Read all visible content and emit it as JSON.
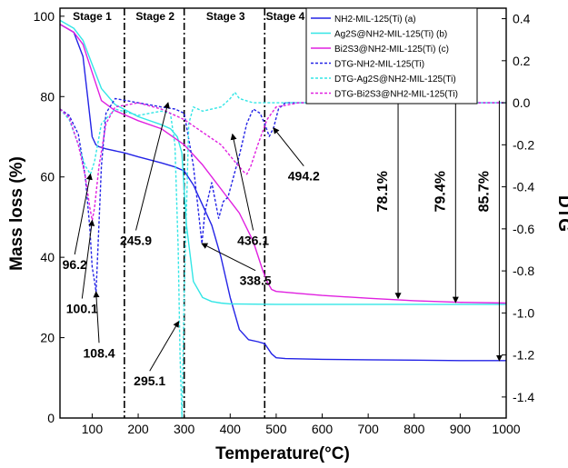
{
  "chart_data": {
    "type": "line",
    "xlabel": "Temperature(°C)",
    "ylabel": "Mass loss (%)",
    "y2label": "DTG",
    "xlim": [
      30,
      1000
    ],
    "ylim": [
      0,
      102
    ],
    "y2lim": [
      -1.5,
      0.45
    ],
    "xticks": [
      100,
      200,
      300,
      400,
      500,
      600,
      700,
      800,
      900,
      1000
    ],
    "yticks": [
      0,
      20,
      40,
      60,
      80,
      100
    ],
    "y2ticks": [
      -1.4,
      -1.2,
      -1.0,
      -0.8,
      -0.6,
      -0.4,
      -0.2,
      0.0,
      0.2,
      0.4
    ],
    "grid": false,
    "legend_position": "top-right",
    "stage_lines": [
      170,
      300,
      475
    ],
    "stages": [
      {
        "label": "Stage 1",
        "x": 100
      },
      {
        "label": "Stage 2",
        "x": 237
      },
      {
        "label": "Stage 3",
        "x": 390
      },
      {
        "label": "Stage 4",
        "x": 520
      }
    ],
    "series": [
      {
        "name": "NH2-MIL-125(Ti) (a)",
        "axis": "left",
        "style": "solid",
        "color": "#2323e6",
        "x": [
          30,
          60,
          80,
          90,
          100,
          108,
          115,
          130,
          170,
          200,
          250,
          280,
          300,
          320,
          340,
          360,
          380,
          400,
          420,
          440,
          460,
          475,
          490,
          500,
          520,
          600,
          700,
          800,
          900,
          1000
        ],
        "y": [
          98,
          96,
          90,
          80,
          70,
          68,
          67.5,
          67,
          66,
          65,
          63.5,
          62.5,
          61.5,
          58,
          53,
          48,
          40,
          30,
          22,
          19.5,
          19,
          18.5,
          16,
          15,
          14.8,
          14.6,
          14.5,
          14.4,
          14.3,
          14.3
        ]
      },
      {
        "name": "Ag2S@NH2-MIL-125(Ti) (b)",
        "axis": "left",
        "style": "solid",
        "color": "#33e6e6",
        "x": [
          30,
          60,
          80,
          100,
          120,
          150,
          200,
          250,
          270,
          285,
          295,
          305,
          320,
          340,
          360,
          380,
          400,
          500,
          600,
          700,
          800,
          900,
          1000
        ],
        "y": [
          99,
          97,
          94,
          88,
          82,
          78,
          75,
          73,
          72,
          70,
          66,
          48,
          34,
          30,
          29,
          28.6,
          28.4,
          28.3,
          28.3,
          28.3,
          28.3,
          28.3,
          28.3
        ]
      },
      {
        "name": "Bi2S3@NH2-MIL-125(Ti) (c)",
        "axis": "left",
        "style": "solid",
        "color": "#e020e0",
        "x": [
          30,
          60,
          80,
          100,
          120,
          150,
          200,
          250,
          300,
          340,
          380,
          420,
          450,
          470,
          480,
          490,
          500,
          550,
          600,
          700,
          800,
          900,
          1000
        ],
        "y": [
          98,
          96,
          93,
          86,
          79,
          76.5,
          74,
          72,
          68,
          63,
          57,
          51,
          44,
          37,
          34,
          32,
          31.5,
          31,
          30.5,
          29.8,
          29.2,
          28.8,
          28.6
        ]
      },
      {
        "name": "DTG-NH2-MIL-125(Ti)",
        "axis": "right",
        "style": "dash",
        "color": "#2323e6",
        "x": [
          30,
          50,
          70,
          85,
          95,
          100,
          105,
          108.4,
          112,
          120,
          130,
          150,
          200,
          250,
          280,
          300,
          320,
          338.5,
          345,
          360,
          375,
          385,
          395,
          420,
          436,
          450,
          465,
          475,
          485,
          494.2,
          505,
          520,
          600,
          700,
          800,
          900,
          1000
        ],
        "y": [
          -0.03,
          -0.06,
          -0.15,
          -0.35,
          -0.6,
          -0.78,
          -0.85,
          -0.9,
          -0.72,
          -0.3,
          -0.05,
          0.02,
          0.0,
          -0.02,
          -0.03,
          -0.05,
          -0.3,
          -0.67,
          -0.52,
          -0.38,
          -0.55,
          -0.47,
          -0.45,
          -0.25,
          -0.1,
          -0.03,
          -0.05,
          -0.1,
          -0.16,
          -0.12,
          -0.03,
          0.0,
          0.0,
          0.0,
          0.0,
          0.0,
          0.0
        ]
      },
      {
        "name": "DTG-Ag2S@NH2-MIL-125(Ti)",
        "axis": "right",
        "style": "dash",
        "color": "#33e6e6",
        "x": [
          30,
          50,
          70,
          85,
          96.2,
          105,
          120,
          150,
          200,
          250,
          270,
          280,
          287,
          291,
          295.1,
          300,
          310,
          320,
          340,
          380,
          400,
          410,
          420,
          450,
          500,
          600,
          700,
          800,
          900,
          1000
        ],
        "y": [
          -0.03,
          -0.08,
          -0.2,
          -0.3,
          -0.34,
          -0.28,
          -0.1,
          -0.03,
          -0.06,
          -0.04,
          -0.05,
          -0.2,
          -0.7,
          -1.2,
          -1.5,
          -0.9,
          -0.1,
          -0.02,
          -0.04,
          -0.02,
          0.02,
          0.05,
          0.02,
          0.0,
          0.0,
          0.0,
          0.0,
          0.0,
          0.0,
          0.0
        ]
      },
      {
        "name": "DTG-Bi2S3@NH2-MIL-125(Ti)",
        "axis": "right",
        "style": "dash",
        "color": "#e020e0",
        "x": [
          30,
          50,
          70,
          85,
          95,
          100.1,
          105,
          115,
          130,
          150,
          200,
          250,
          300,
          340,
          380,
          410,
          430,
          436.1,
          445,
          460,
          480,
          500,
          550,
          600,
          700,
          800,
          900,
          1000
        ],
        "y": [
          -0.03,
          -0.07,
          -0.2,
          -0.35,
          -0.5,
          -0.56,
          -0.5,
          -0.3,
          -0.1,
          -0.02,
          0.0,
          -0.03,
          -0.08,
          -0.14,
          -0.2,
          -0.28,
          -0.33,
          -0.34,
          -0.3,
          -0.2,
          -0.08,
          -0.02,
          0.0,
          0.0,
          0.0,
          0.0,
          0.0,
          0.0
        ]
      }
    ],
    "annotations": [
      {
        "text": "96.2",
        "point_x": 96.2,
        "point_y": -0.34,
        "axis": "right",
        "label_x": 62,
        "label_y": 38
      },
      {
        "text": "100.1",
        "point_x": 100.1,
        "point_y": -0.56,
        "axis": "right",
        "label_x": 78,
        "label_y": 27
      },
      {
        "text": "108.4",
        "point_x": 108.4,
        "point_y": -0.9,
        "axis": "right",
        "label_x": 115,
        "label_y": 16
      },
      {
        "text": "245.9",
        "point_x": 265,
        "point_y": 0.0,
        "axis": "right",
        "label_x": 195,
        "label_y": 44
      },
      {
        "text": "295.1",
        "point_x": 288,
        "point_y": 24,
        "axis": "left",
        "label_x": 225,
        "label_y": 9
      },
      {
        "text": "338.5",
        "point_x": 338.5,
        "point_y": -0.67,
        "axis": "right",
        "label_x": 455,
        "label_y": 34
      },
      {
        "text": "436.1",
        "point_x": 405,
        "point_y": -0.15,
        "axis": "right",
        "label_x": 450,
        "label_y": 44
      },
      {
        "text": "494.2",
        "point_x": 494.2,
        "point_y": -0.12,
        "axis": "right",
        "label_x": 560,
        "label_y": 60
      }
    ],
    "mass_loss_labels": [
      {
        "text": "78.1%",
        "x": 765,
        "from_y": 79,
        "to_y": 29.8
      },
      {
        "text": "79.4%",
        "x": 890,
        "from_y": 79,
        "to_y": 28.8
      },
      {
        "text": "85.7%",
        "x": 985,
        "from_y": 79,
        "to_y": 14.3
      }
    ]
  }
}
